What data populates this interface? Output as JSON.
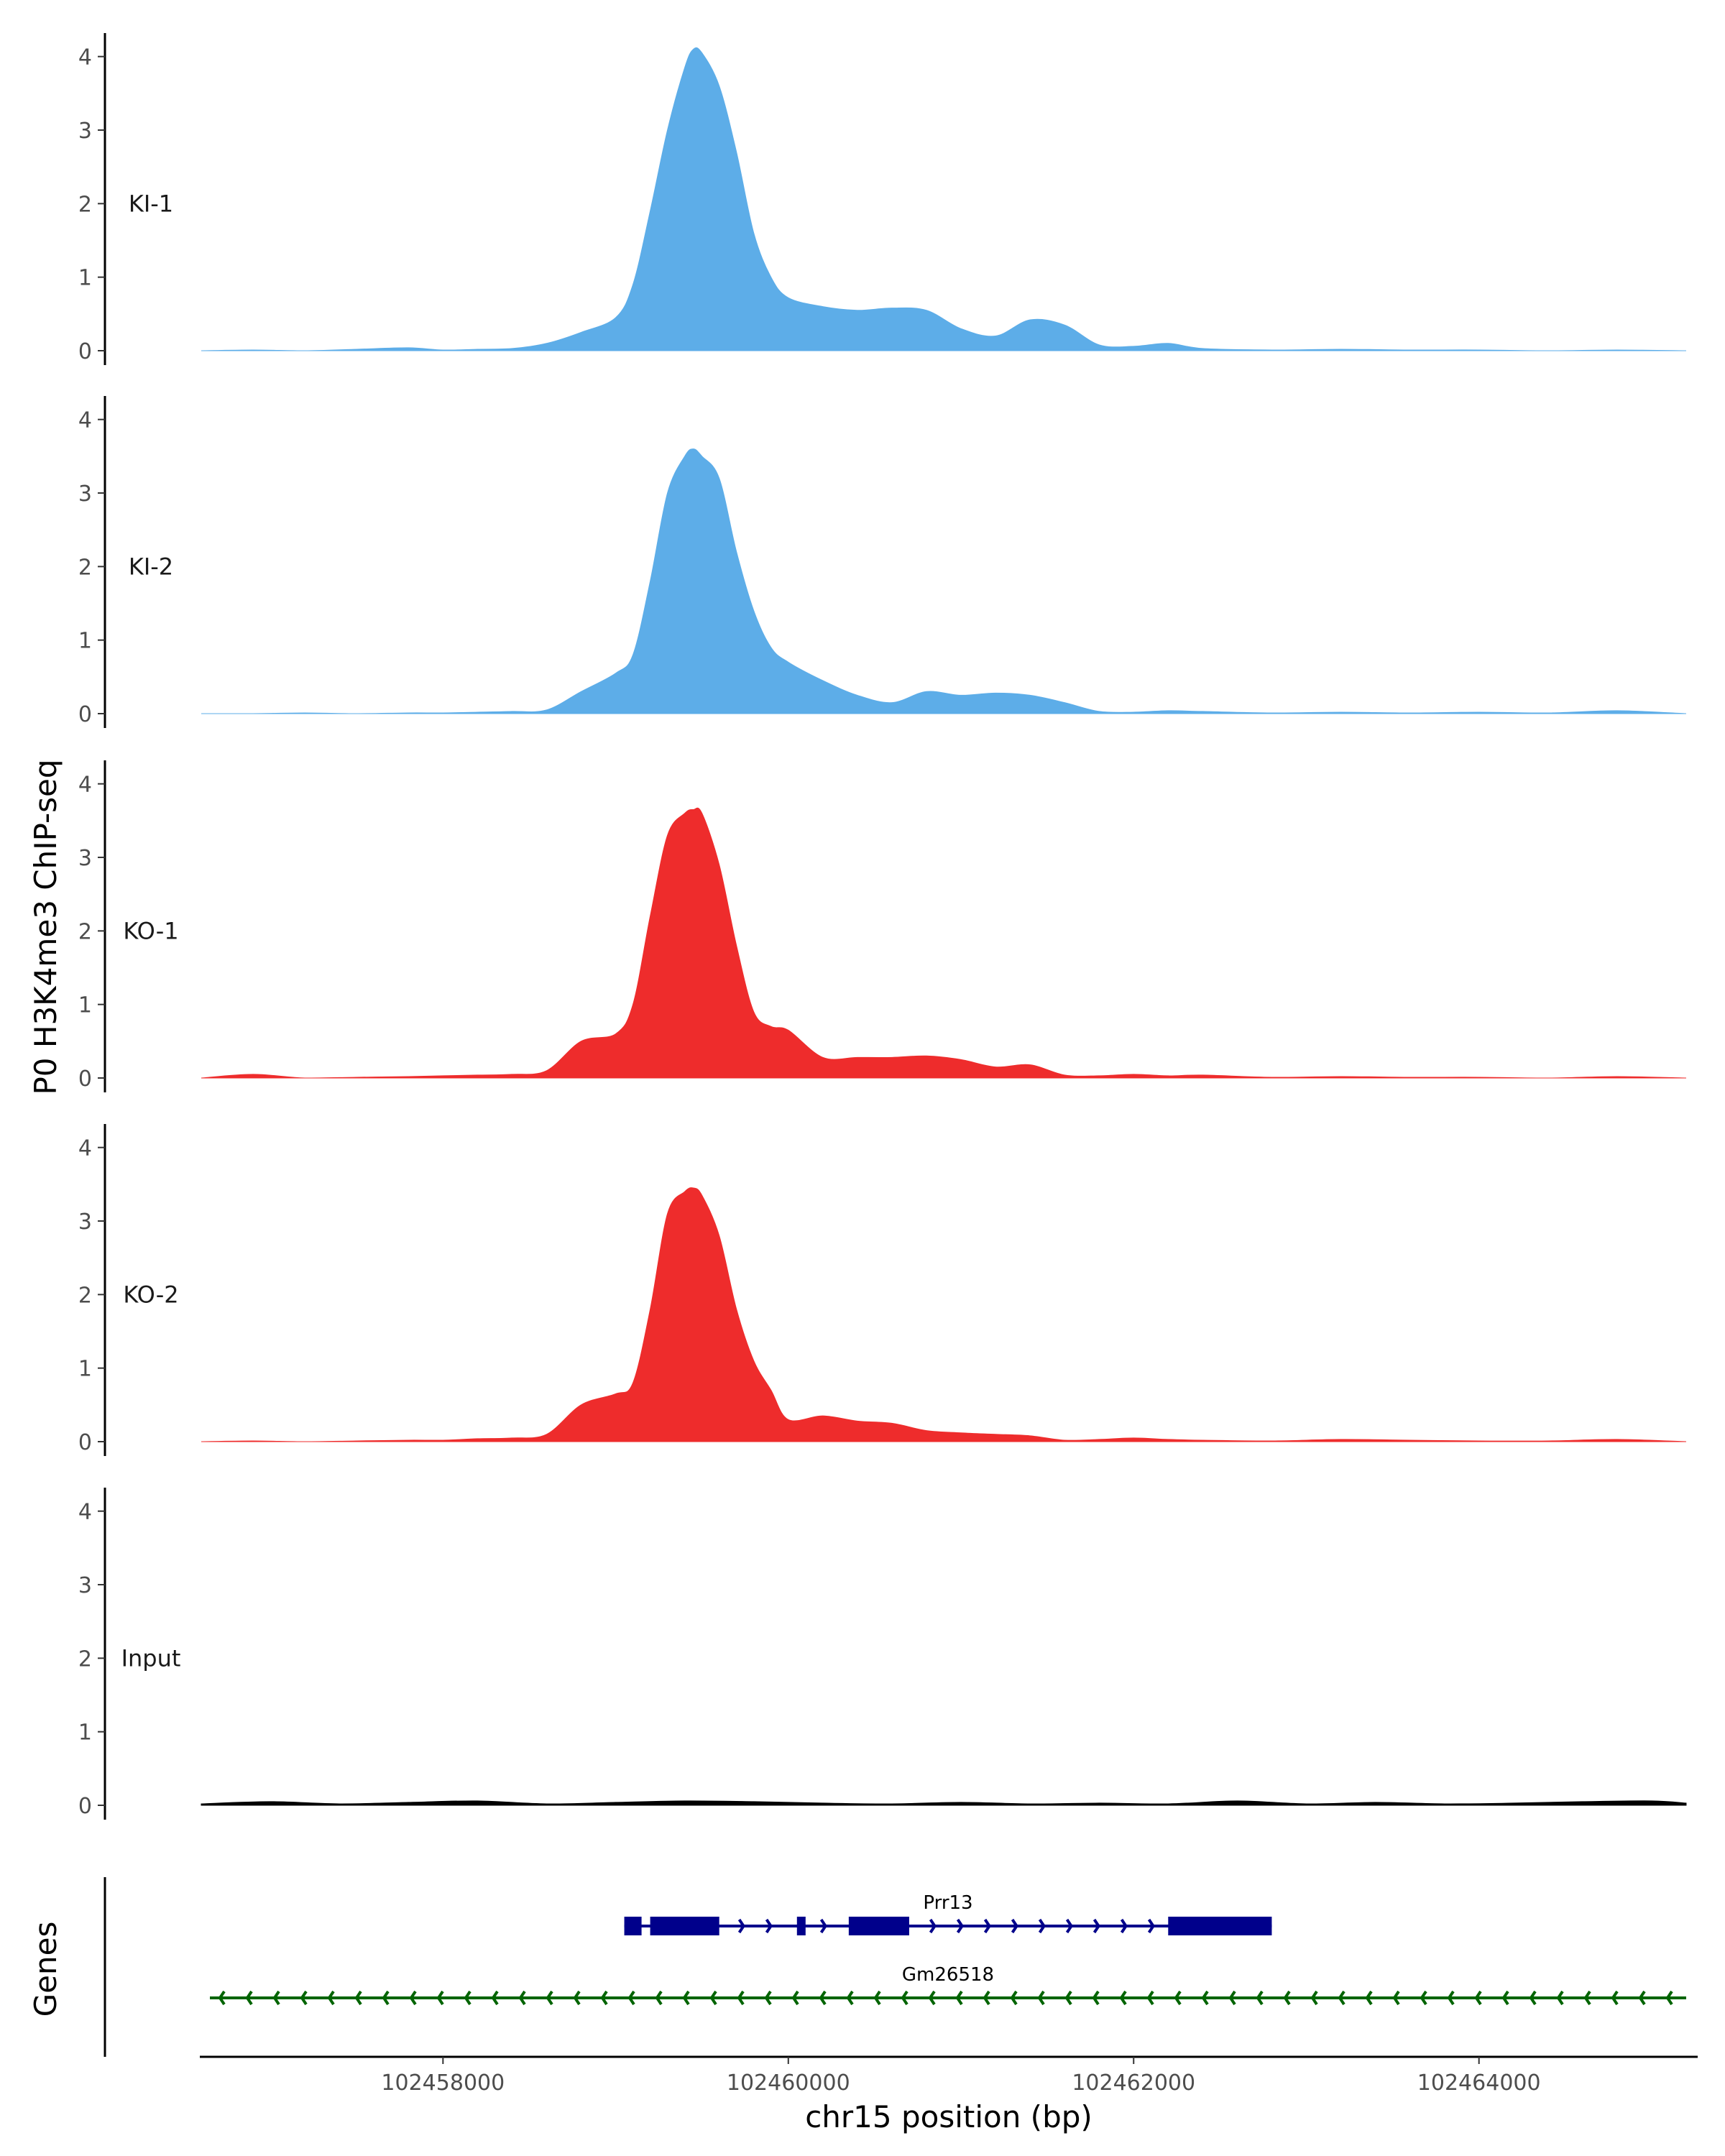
{
  "chart_data": {
    "type": "area",
    "ylabel": "P0 H3K4me3 ChIP-seq",
    "xlabel": "chr15 position (bp)",
    "genes_label": "Genes",
    "xlim": [
      102456600,
      102465300
    ],
    "ylim": [
      0,
      4.3
    ],
    "yticks": [
      0,
      1,
      2,
      3,
      4
    ],
    "xticks": [
      102458000,
      102460000,
      102462000,
      102464000
    ],
    "xtick_labels": [
      "102458000",
      "102460000",
      "102462000",
      "102464000"
    ],
    "grid": false,
    "series": [
      {
        "name": "KI-1",
        "color": "#5dade8",
        "x": [
          102456600,
          102456900,
          102457200,
          102457500,
          102457800,
          102458000,
          102458200,
          102458400,
          102458600,
          102458800,
          102459000,
          102459100,
          102459200,
          102459300,
          102459400,
          102459450,
          102459500,
          102459600,
          102459700,
          102459800,
          102459900,
          102460000,
          102460200,
          102460400,
          102460600,
          102460800,
          102461000,
          102461200,
          102461400,
          102461600,
          102461800,
          102462000,
          102462200,
          102462400,
          102462800,
          102463200,
          102463600,
          102464000,
          102464400,
          102464800,
          102465200
        ],
        "y": [
          0.0,
          0.01,
          0.0,
          0.02,
          0.04,
          0.01,
          0.02,
          0.03,
          0.1,
          0.25,
          0.45,
          0.9,
          1.9,
          3.0,
          3.85,
          4.1,
          4.05,
          3.6,
          2.7,
          1.6,
          1.0,
          0.72,
          0.6,
          0.55,
          0.58,
          0.55,
          0.3,
          0.2,
          0.42,
          0.35,
          0.08,
          0.06,
          0.1,
          0.03,
          0.01,
          0.02,
          0.01,
          0.01,
          0.0,
          0.01,
          0.0
        ]
      },
      {
        "name": "KI-2",
        "color": "#5dade8",
        "x": [
          102456600,
          102456900,
          102457200,
          102457500,
          102457800,
          102458000,
          102458200,
          102458400,
          102458600,
          102458800,
          102459000,
          102459100,
          102459200,
          102459300,
          102459400,
          102459450,
          102459500,
          102459600,
          102459700,
          102459800,
          102459900,
          102460000,
          102460200,
          102460400,
          102460600,
          102460800,
          102461000,
          102461200,
          102461400,
          102461600,
          102461800,
          102462000,
          102462200,
          102462400,
          102462800,
          102463200,
          102463600,
          102464000,
          102464400,
          102464800,
          102465200
        ],
        "y": [
          0.0,
          0.0,
          0.01,
          0.0,
          0.01,
          0.01,
          0.02,
          0.03,
          0.05,
          0.3,
          0.55,
          0.8,
          1.8,
          3.0,
          3.5,
          3.6,
          3.5,
          3.2,
          2.2,
          1.4,
          0.9,
          0.7,
          0.45,
          0.25,
          0.15,
          0.3,
          0.25,
          0.28,
          0.25,
          0.15,
          0.03,
          0.02,
          0.04,
          0.03,
          0.01,
          0.02,
          0.01,
          0.02,
          0.01,
          0.04,
          0.0
        ]
      },
      {
        "name": "KO-1",
        "color": "#ee2c2c",
        "x": [
          102456600,
          102456900,
          102457200,
          102457500,
          102457800,
          102458000,
          102458200,
          102458400,
          102458600,
          102458800,
          102459000,
          102459100,
          102459200,
          102459300,
          102459400,
          102459450,
          102459500,
          102459600,
          102459700,
          102459800,
          102459900,
          102460000,
          102460200,
          102460400,
          102460600,
          102460800,
          102461000,
          102461200,
          102461400,
          102461600,
          102461800,
          102462000,
          102462200,
          102462400,
          102462800,
          102463200,
          102463600,
          102464000,
          102464400,
          102464800,
          102465200
        ],
        "y": [
          0.0,
          0.05,
          0.0,
          0.01,
          0.02,
          0.03,
          0.04,
          0.05,
          0.1,
          0.5,
          0.6,
          1.0,
          2.2,
          3.3,
          3.6,
          3.65,
          3.6,
          2.9,
          1.8,
          0.9,
          0.7,
          0.65,
          0.28,
          0.28,
          0.28,
          0.3,
          0.25,
          0.15,
          0.18,
          0.04,
          0.03,
          0.05,
          0.03,
          0.04,
          0.01,
          0.02,
          0.01,
          0.01,
          0.0,
          0.02,
          0.0
        ]
      },
      {
        "name": "KO-2",
        "color": "#ee2c2c",
        "x": [
          102456600,
          102456900,
          102457200,
          102457500,
          102457800,
          102458000,
          102458200,
          102458400,
          102458600,
          102458800,
          102459000,
          102459100,
          102459200,
          102459300,
          102459400,
          102459450,
          102459500,
          102459600,
          102459700,
          102459800,
          102459900,
          102460000,
          102460200,
          102460400,
          102460600,
          102460800,
          102461000,
          102461200,
          102461400,
          102461600,
          102461800,
          102462000,
          102462200,
          102462400,
          102462800,
          102463200,
          102463600,
          102464000,
          102464400,
          102464800,
          102465200
        ],
        "y": [
          0.0,
          0.01,
          0.0,
          0.01,
          0.02,
          0.02,
          0.04,
          0.05,
          0.1,
          0.5,
          0.65,
          0.8,
          1.8,
          3.1,
          3.4,
          3.45,
          3.35,
          2.8,
          1.8,
          1.1,
          0.7,
          0.3,
          0.35,
          0.28,
          0.25,
          0.15,
          0.12,
          0.1,
          0.08,
          0.02,
          0.03,
          0.05,
          0.03,
          0.02,
          0.01,
          0.03,
          0.02,
          0.01,
          0.01,
          0.03,
          0.0
        ]
      },
      {
        "name": "Input",
        "color": "#000000",
        "x": [
          102456600,
          102457000,
          102457400,
          102457800,
          102458200,
          102458600,
          102459000,
          102459400,
          102459800,
          102460200,
          102460600,
          102461000,
          102461400,
          102461800,
          102462200,
          102462600,
          102463000,
          102463400,
          102463800,
          102464200,
          102464600,
          102465000,
          102465200
        ],
        "y": [
          0.02,
          0.05,
          0.02,
          0.04,
          0.06,
          0.02,
          0.04,
          0.06,
          0.05,
          0.03,
          0.02,
          0.04,
          0.02,
          0.03,
          0.02,
          0.06,
          0.02,
          0.04,
          0.02,
          0.03,
          0.05,
          0.06,
          0.03
        ]
      }
    ],
    "genes": [
      {
        "name": "Prr13",
        "color": "#00008b",
        "strand": "+",
        "start": 102459050,
        "end": 102462800,
        "exons": [
          [
            102459050,
            102459150
          ],
          [
            102459200,
            102459600
          ],
          [
            102460050,
            102460100
          ],
          [
            102460350,
            102460700
          ],
          [
            102462200,
            102462800
          ]
        ]
      },
      {
        "name": "Gm26518",
        "color": "#006400",
        "strand": "-",
        "start": 102456650,
        "end": 102465200,
        "exons": []
      }
    ]
  }
}
